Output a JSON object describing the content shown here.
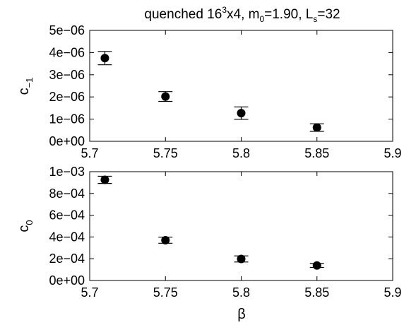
{
  "title": {
    "prefix": "quenched 16",
    "sup": "3",
    "mid1": "x4, m",
    "sub_m": "0",
    "mid2": "=1.90, L",
    "sub_L": "s",
    "suffix": "=32"
  },
  "chart_data": [
    {
      "type": "scatter",
      "xlabel": "",
      "ylabel": {
        "base": "c",
        "sub": "−1"
      },
      "xlim": [
        5.7,
        5.9
      ],
      "ylim": [
        0,
        5e-06
      ],
      "x_ticks": [
        5.7,
        5.75,
        5.8,
        5.85,
        5.9
      ],
      "x_tick_labels": [
        "5.7",
        "5.75",
        "5.8",
        "5.85",
        "5.9"
      ],
      "y_ticks": [
        0,
        1e-06,
        2e-06,
        3e-06,
        4e-06,
        5e-06
      ],
      "y_tick_labels": [
        "0e+00",
        "1e−06",
        "2e−06",
        "3e−06",
        "4e−06",
        "5e−06"
      ],
      "grid": false,
      "series": [
        {
          "x": [
            5.71,
            5.75,
            5.8,
            5.85
          ],
          "y": [
            3.75e-06,
            2.02e-06,
            1.27e-06,
            6.2e-07
          ],
          "yerr": [
            3e-07,
            2.2e-07,
            2.8e-07,
            1.7e-07
          ]
        }
      ]
    },
    {
      "type": "scatter",
      "xlabel": "β",
      "ylabel": {
        "base": "c",
        "sub": "0"
      },
      "xlim": [
        5.7,
        5.9
      ],
      "ylim": [
        0,
        0.001
      ],
      "x_ticks": [
        5.7,
        5.75,
        5.8,
        5.85,
        5.9
      ],
      "x_tick_labels": [
        "5.7",
        "5.75",
        "5.8",
        "5.85",
        "5.9"
      ],
      "y_ticks": [
        0,
        0.0002,
        0.0004,
        0.0006,
        0.0008,
        0.001
      ],
      "y_tick_labels": [
        "0e+00",
        "2e−04",
        "4e−04",
        "6e−04",
        "8e−04",
        "1e−03"
      ],
      "grid": false,
      "series": [
        {
          "x": [
            5.71,
            5.75,
            5.8,
            5.85
          ],
          "y": [
            0.000925,
            0.00037,
            0.000198,
            0.000138
          ],
          "yerr": [
            3.3e-05,
            2.8e-05,
            2.8e-05,
            1.8e-05
          ]
        }
      ]
    }
  ]
}
